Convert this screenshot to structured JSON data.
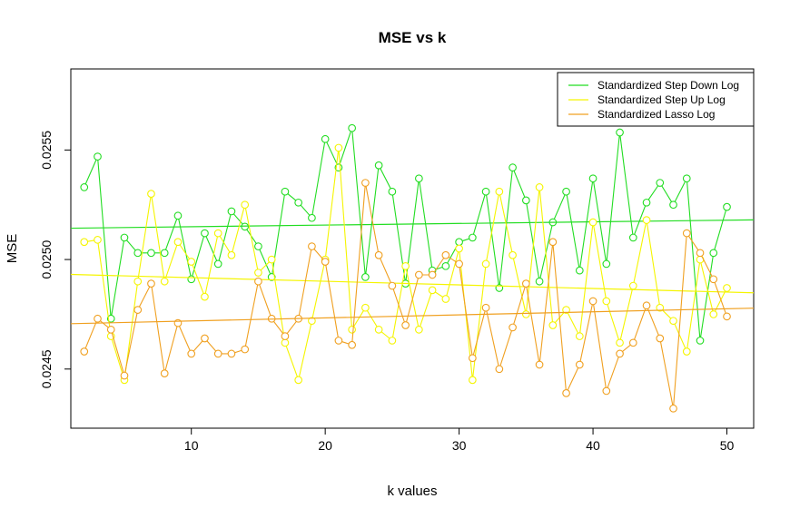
{
  "chart_data": {
    "type": "line",
    "title": "MSE vs k",
    "xlabel": "k values",
    "ylabel": "MSE",
    "xlim": [
      1,
      52
    ],
    "ylim": [
      0.02423,
      0.02587
    ],
    "x_ticks": [
      10,
      20,
      30,
      40,
      50
    ],
    "y_ticks": [
      0.0245,
      0.025,
      0.0255
    ],
    "y_tick_labels": [
      "0.0245",
      "0.0250",
      "0.0255"
    ],
    "legend_position": "top-right",
    "x": [
      2,
      3,
      4,
      5,
      6,
      7,
      8,
      9,
      10,
      11,
      12,
      13,
      14,
      15,
      16,
      17,
      18,
      19,
      20,
      21,
      22,
      23,
      24,
      25,
      26,
      27,
      28,
      29,
      30,
      31,
      32,
      33,
      34,
      35,
      36,
      37,
      38,
      39,
      40,
      41,
      42,
      43,
      44,
      45,
      46,
      47,
      48,
      49,
      50
    ],
    "series": [
      {
        "name": "Standardized Step Down Log",
        "color": "#22dd22",
        "values": [
          0.02533,
          0.02547,
          0.02473,
          0.0251,
          0.02503,
          0.02503,
          0.02503,
          0.0252,
          0.02491,
          0.02512,
          0.02498,
          0.02522,
          0.02515,
          0.02506,
          0.02492,
          0.02531,
          0.02526,
          0.02519,
          0.02555,
          0.02542,
          0.0256,
          0.02492,
          0.02543,
          0.02531,
          0.02489,
          0.02537,
          0.02495,
          0.02497,
          0.02508,
          0.0251,
          0.02531,
          0.02487,
          0.02542,
          0.02527,
          0.0249,
          0.02517,
          0.02531,
          0.02495,
          0.02537,
          0.02498,
          0.02558,
          0.0251,
          0.02526,
          0.02535,
          0.02525,
          0.02537,
          0.02463,
          0.02503,
          0.02524
        ],
        "trend": [
          0.025143,
          0.025181
        ]
      },
      {
        "name": "Standardized Step Up Log",
        "color": "#f5f500",
        "values": [
          0.02508,
          0.02509,
          0.02465,
          0.02445,
          0.0249,
          0.0253,
          0.0249,
          0.02508,
          0.02499,
          0.02483,
          0.02512,
          0.02502,
          0.02525,
          0.02494,
          0.025,
          0.02462,
          0.02445,
          0.02472,
          0.025,
          0.02551,
          0.02468,
          0.02478,
          0.02468,
          0.02463,
          0.02497,
          0.02468,
          0.02486,
          0.02482,
          0.02505,
          0.02445,
          0.02498,
          0.02531,
          0.02502,
          0.02475,
          0.02533,
          0.0247,
          0.02477,
          0.02465,
          0.02517,
          0.02481,
          0.02462,
          0.02488,
          0.02518,
          0.02478,
          0.02472,
          0.02458,
          0.025,
          0.02475,
          0.02487
        ],
        "trend": [
          0.024932,
          0.024848
        ]
      },
      {
        "name": "Standardized Lasso Log",
        "color": "#f0a020",
        "values": [
          0.02458,
          0.02473,
          0.02468,
          0.02447,
          0.02477,
          0.02489,
          0.02448,
          0.02471,
          0.02457,
          0.02464,
          0.02457,
          0.02457,
          0.02459,
          0.0249,
          0.02473,
          0.02465,
          0.02473,
          0.02506,
          0.02499,
          0.02463,
          0.02461,
          0.02535,
          0.02502,
          0.02488,
          0.0247,
          0.02493,
          0.02493,
          0.02502,
          0.02498,
          0.02455,
          0.02478,
          0.0245,
          0.02469,
          0.02489,
          0.02452,
          0.02508,
          0.02439,
          0.02452,
          0.02481,
          0.0244,
          0.02457,
          0.02462,
          0.02479,
          0.02464,
          0.02432,
          0.02512,
          0.02503,
          0.02491,
          0.02474
        ],
        "trend": [
          0.024707,
          0.024778
        ]
      }
    ]
  }
}
